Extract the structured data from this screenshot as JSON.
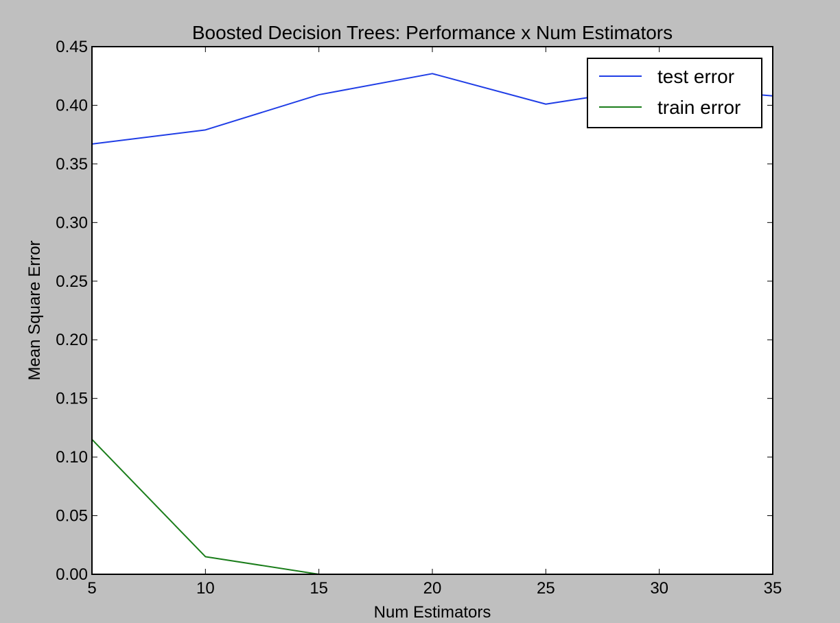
{
  "chart_data": {
    "type": "line",
    "title": "Boosted Decision Trees: Performance x Num Estimators",
    "xlabel": "Num Estimators",
    "ylabel": "Mean Square Error",
    "x": [
      5,
      10,
      15,
      20,
      25,
      30,
      35
    ],
    "xlim": [
      5,
      35
    ],
    "ylim": [
      0.0,
      0.45
    ],
    "xticks": [
      5,
      10,
      15,
      20,
      25,
      30,
      35
    ],
    "xtick_labels": [
      "5",
      "10",
      "15",
      "20",
      "25",
      "30",
      "35"
    ],
    "yticks": [
      0.0,
      0.05,
      0.1,
      0.15,
      0.2,
      0.25,
      0.3,
      0.35,
      0.4,
      0.45
    ],
    "ytick_labels": [
      "0.00",
      "0.05",
      "0.10",
      "0.15",
      "0.20",
      "0.25",
      "0.30",
      "0.35",
      "0.40",
      "0.45"
    ],
    "grid": false,
    "legend_position": "top-right",
    "series": [
      {
        "name": "test error",
        "color": "#1f3de6",
        "values": [
          0.367,
          0.379,
          0.409,
          0.427,
          0.401,
          0.416,
          0.408
        ]
      },
      {
        "name": "train error",
        "color": "#1a7d1a",
        "values": [
          0.115,
          0.015,
          0.0,
          0.0,
          0.0,
          0.0,
          0.0
        ]
      }
    ]
  }
}
